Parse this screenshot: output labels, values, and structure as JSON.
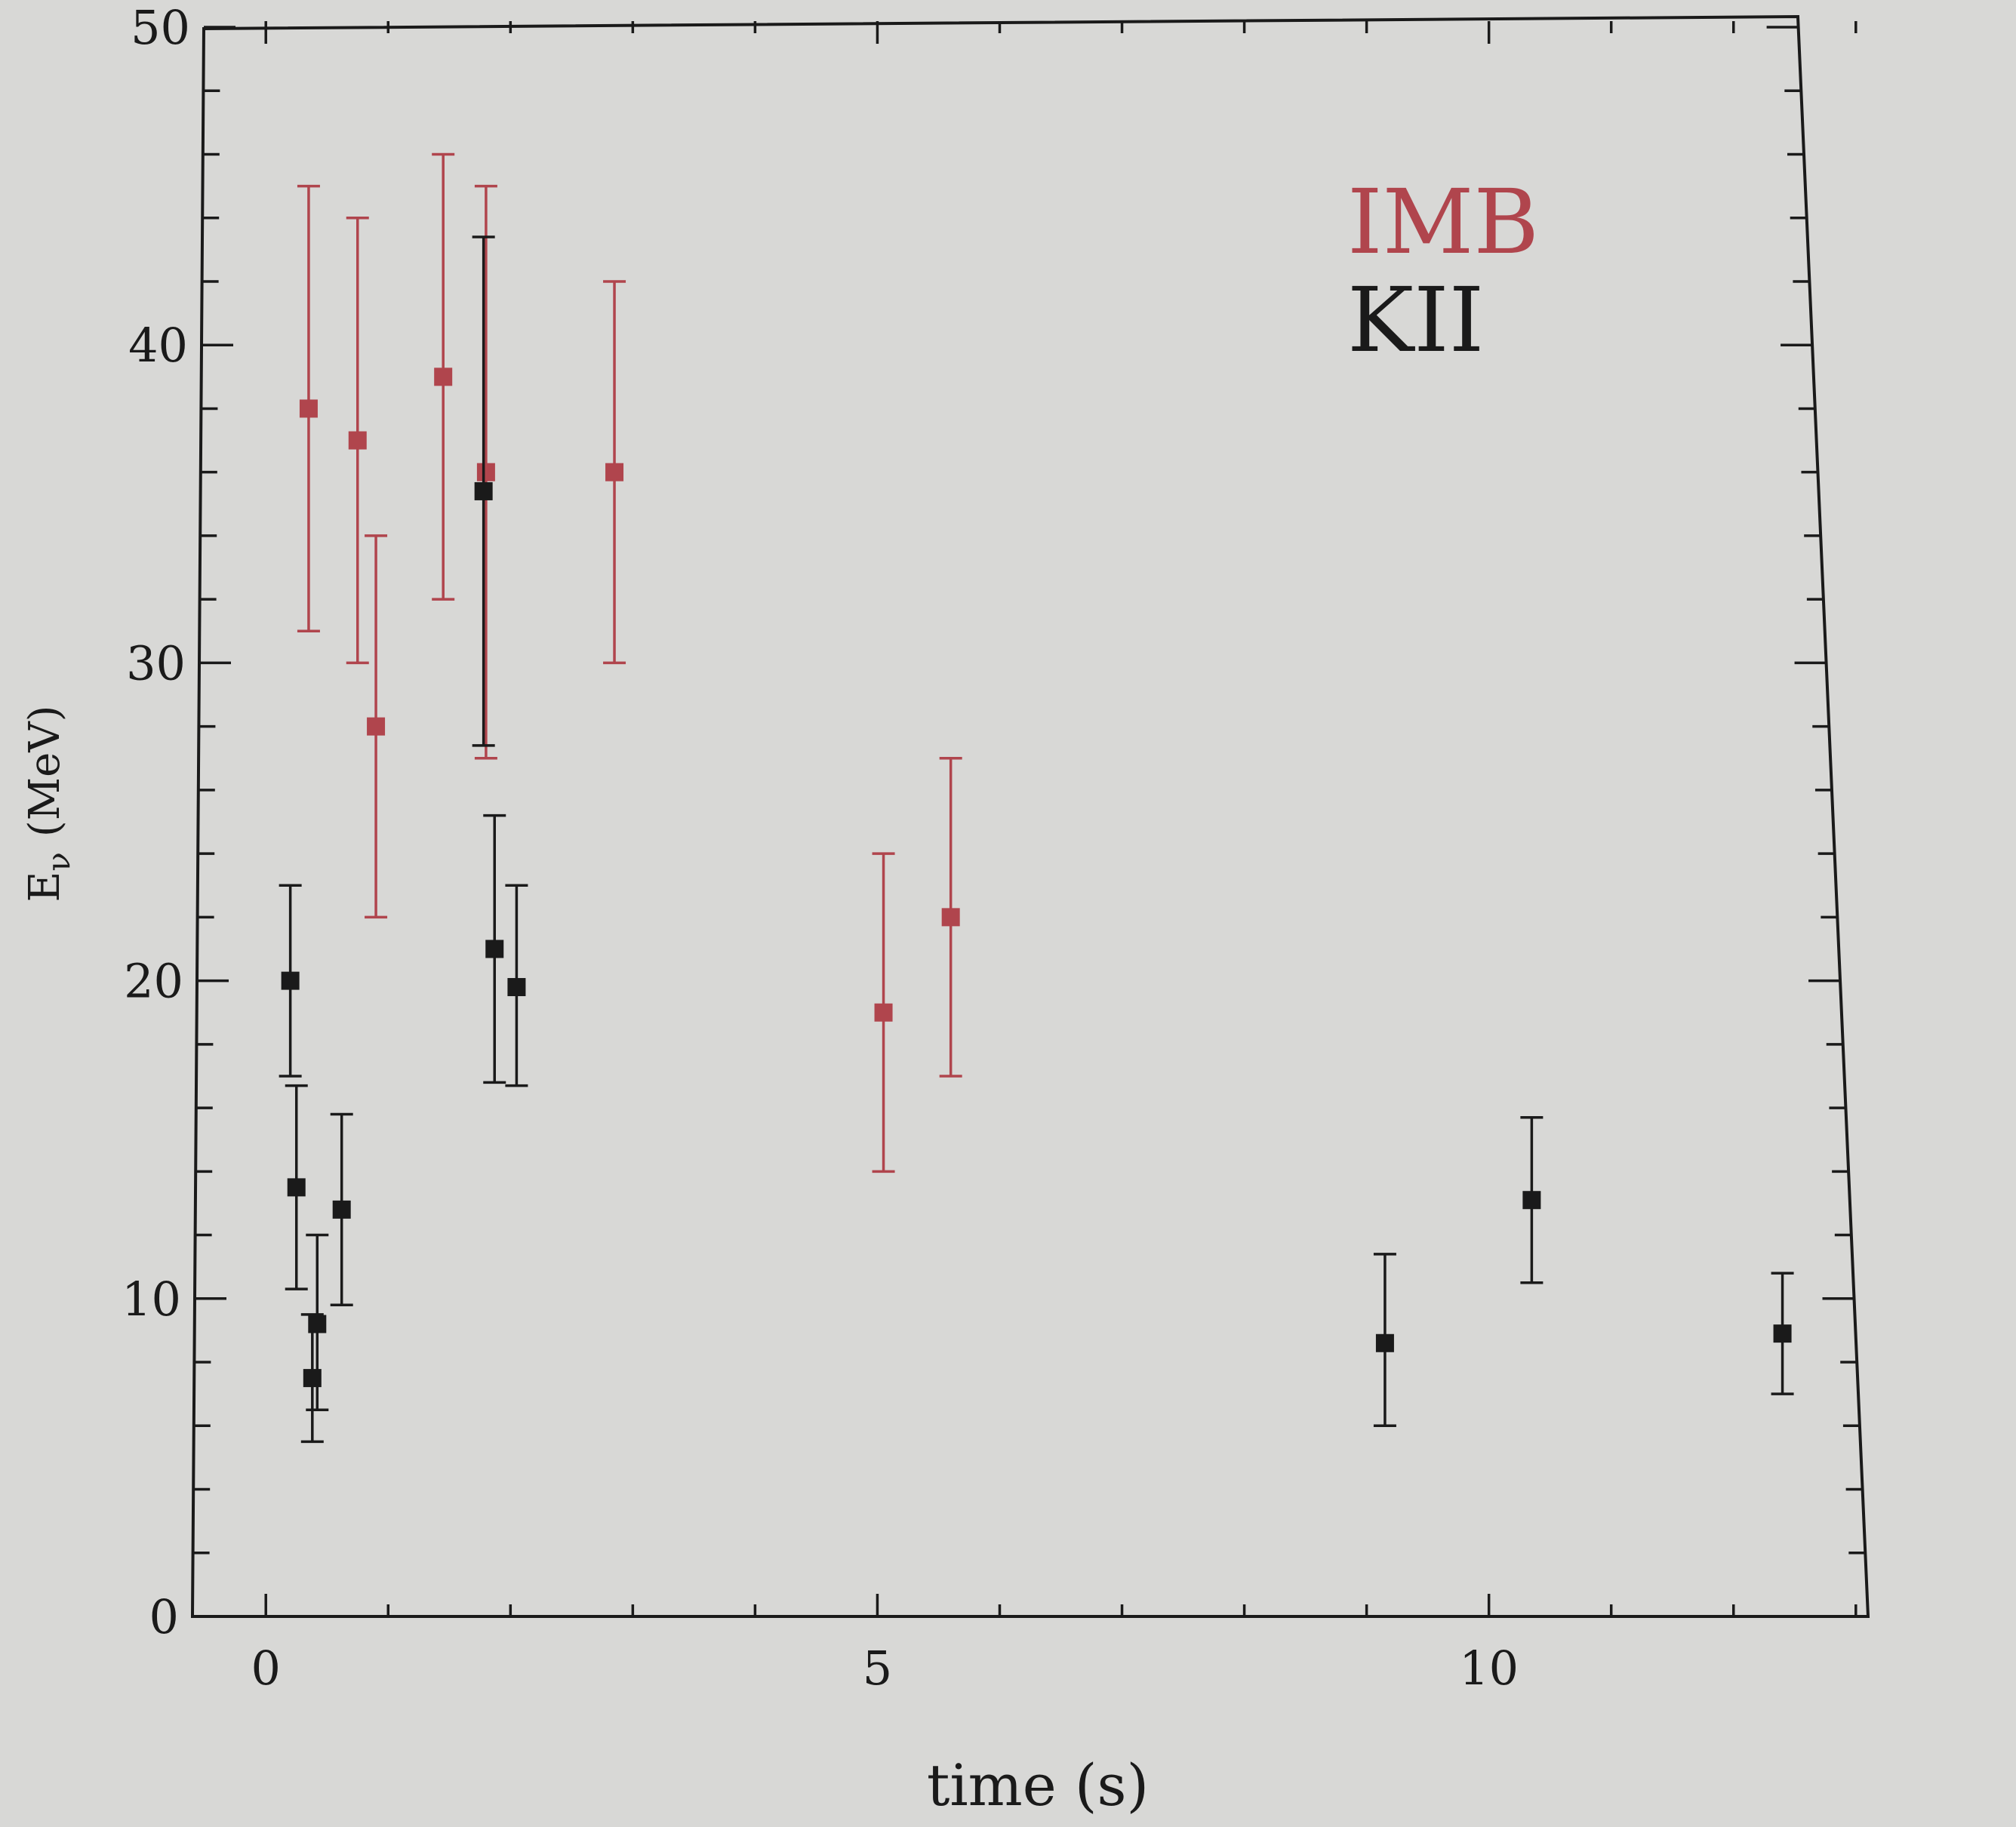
{
  "chart_data": {
    "type": "scatter",
    "title": "",
    "xlabel": "time (s)",
    "ylabel_main": "E",
    "ylabel_sub": "ν",
    "ylabel_unit": "(MeV)",
    "xlim": [
      -0.6,
      13.1
    ],
    "ylim": [
      0,
      50
    ],
    "x_ticks": [
      0,
      5,
      10
    ],
    "y_ticks": [
      0,
      10,
      20,
      30,
      40,
      50
    ],
    "grid": false,
    "legend_position": "top-right",
    "series": [
      {
        "name": "IMB",
        "color": "#b0454d",
        "points": [
          {
            "x": 0.35,
            "y": 38,
            "ylow": 31,
            "yhigh": 45
          },
          {
            "x": 0.75,
            "y": 37,
            "ylow": 30,
            "yhigh": 44
          },
          {
            "x": 0.9,
            "y": 28,
            "ylow": 22,
            "yhigh": 34
          },
          {
            "x": 1.45,
            "y": 39,
            "ylow": 32,
            "yhigh": 46
          },
          {
            "x": 1.8,
            "y": 36,
            "ylow": 27,
            "yhigh": 45
          },
          {
            "x": 2.85,
            "y": 36,
            "ylow": 30,
            "yhigh": 42
          },
          {
            "x": 5.05,
            "y": 19,
            "ylow": 14,
            "yhigh": 24
          },
          {
            "x": 5.6,
            "y": 22,
            "ylow": 17,
            "yhigh": 27
          }
        ]
      },
      {
        "name": "KII",
        "color": "#1a1a1a",
        "points": [
          {
            "x": 0.2,
            "y": 20,
            "ylow": 17,
            "yhigh": 23
          },
          {
            "x": 0.25,
            "y": 13.5,
            "ylow": 10.3,
            "yhigh": 16.7
          },
          {
            "x": 0.38,
            "y": 7.5,
            "ylow": 5.5,
            "yhigh": 9.5
          },
          {
            "x": 0.42,
            "y": 9.2,
            "ylow": 6.5,
            "yhigh": 12
          },
          {
            "x": 0.62,
            "y": 12.8,
            "ylow": 9.8,
            "yhigh": 15.8
          },
          {
            "x": 1.78,
            "y": 35.4,
            "ylow": 27.4,
            "yhigh": 43.4
          },
          {
            "x": 1.87,
            "y": 21,
            "ylow": 16.8,
            "yhigh": 25.2
          },
          {
            "x": 2.05,
            "y": 19.8,
            "ylow": 16.7,
            "yhigh": 23
          },
          {
            "x": 9.15,
            "y": 8.6,
            "ylow": 6,
            "yhigh": 11.4
          },
          {
            "x": 10.35,
            "y": 13.1,
            "ylow": 10.5,
            "yhigh": 15.7
          },
          {
            "x": 12.4,
            "y": 8.9,
            "ylow": 7,
            "yhigh": 10.8
          }
        ]
      }
    ]
  }
}
